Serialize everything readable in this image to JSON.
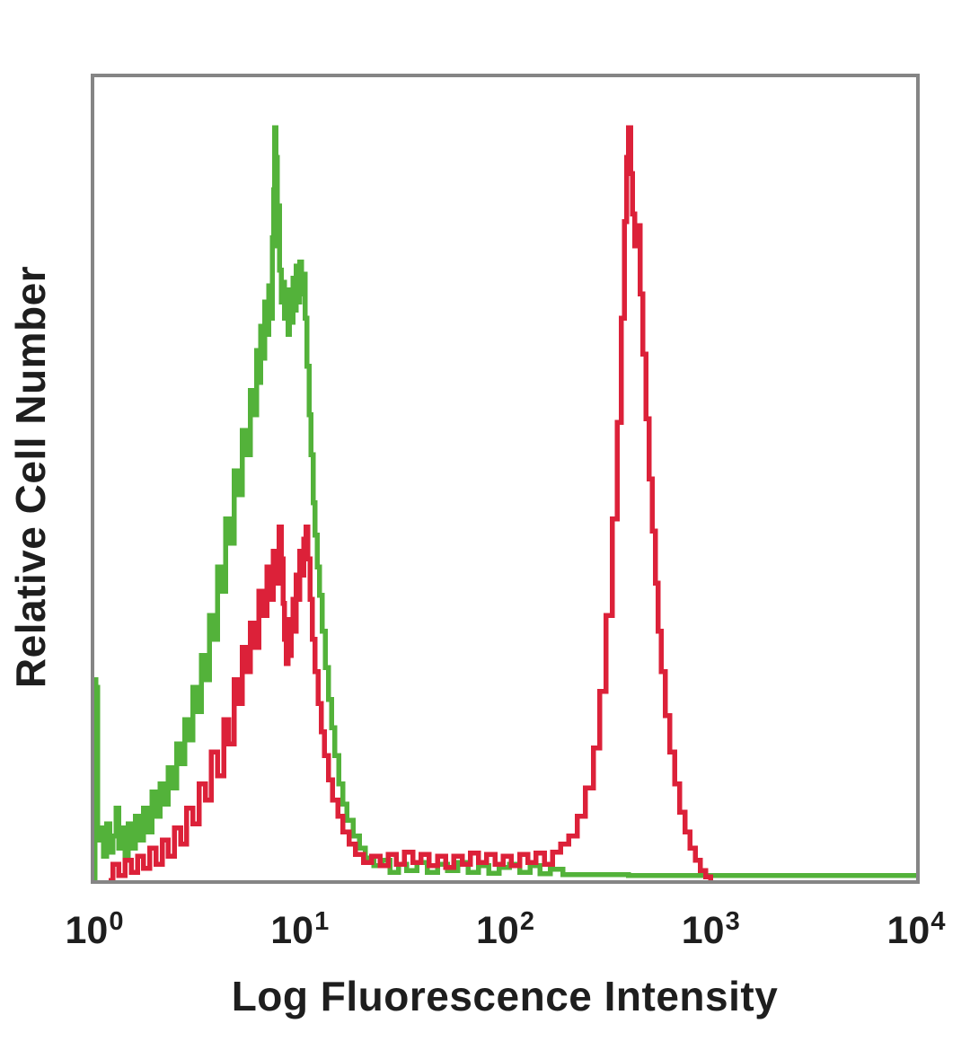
{
  "figure": {
    "background_color": "#ffffff",
    "frame_color": "#858585",
    "text_color": "#1e1e1e"
  },
  "chart_data": {
    "type": "line",
    "subtype": "flow-cytometry-overlay-histogram",
    "title": "",
    "xlabel": "Log Fluorescence Intensity",
    "ylabel": "Relative Cell Number",
    "x_scale": "log10",
    "x_range_decades": [
      0,
      4
    ],
    "x_ticks": [
      {
        "base": "10",
        "exp": "0",
        "decade": 0
      },
      {
        "base": "10",
        "exp": "1",
        "decade": 1
      },
      {
        "base": "10",
        "exp": "2",
        "decade": 2
      },
      {
        "base": "10",
        "exp": "3",
        "decade": 3
      },
      {
        "base": "10",
        "exp": "4",
        "decade": 4
      }
    ],
    "y_range": [
      0,
      1
    ],
    "y_ticks": [],
    "grid": false,
    "legend": "none",
    "series": [
      {
        "name": "green-curve",
        "color": "#53b23a",
        "peak_log_x": 0.88,
        "peak_height": 0.94,
        "points": [
          [
            0.0,
            0.0
          ],
          [
            0.004,
            0.25
          ],
          [
            0.008,
            0.17
          ],
          [
            0.012,
            0.24
          ],
          [
            0.016,
            0.05
          ],
          [
            0.03,
            0.065
          ],
          [
            0.045,
            0.03
          ],
          [
            0.06,
            0.07
          ],
          [
            0.075,
            0.035
          ],
          [
            0.09,
            0.055
          ],
          [
            0.105,
            0.09
          ],
          [
            0.12,
            0.04
          ],
          [
            0.135,
            0.065
          ],
          [
            0.15,
            0.03
          ],
          [
            0.165,
            0.07
          ],
          [
            0.18,
            0.04
          ],
          [
            0.2,
            0.08
          ],
          [
            0.22,
            0.05
          ],
          [
            0.24,
            0.09
          ],
          [
            0.26,
            0.06
          ],
          [
            0.28,
            0.11
          ],
          [
            0.3,
            0.08
          ],
          [
            0.32,
            0.12
          ],
          [
            0.34,
            0.095
          ],
          [
            0.36,
            0.14
          ],
          [
            0.38,
            0.115
          ],
          [
            0.4,
            0.17
          ],
          [
            0.42,
            0.145
          ],
          [
            0.44,
            0.2
          ],
          [
            0.46,
            0.175
          ],
          [
            0.48,
            0.24
          ],
          [
            0.5,
            0.21
          ],
          [
            0.52,
            0.28
          ],
          [
            0.54,
            0.25
          ],
          [
            0.56,
            0.33
          ],
          [
            0.58,
            0.3
          ],
          [
            0.6,
            0.39
          ],
          [
            0.62,
            0.36
          ],
          [
            0.64,
            0.45
          ],
          [
            0.66,
            0.42
          ],
          [
            0.68,
            0.51
          ],
          [
            0.7,
            0.48
          ],
          [
            0.72,
            0.56
          ],
          [
            0.74,
            0.53
          ],
          [
            0.76,
            0.61
          ],
          [
            0.775,
            0.58
          ],
          [
            0.79,
            0.66
          ],
          [
            0.8,
            0.62
          ],
          [
            0.81,
            0.69
          ],
          [
            0.82,
            0.65
          ],
          [
            0.83,
            0.72
          ],
          [
            0.84,
            0.68
          ],
          [
            0.85,
            0.74
          ],
          [
            0.858,
            0.7
          ],
          [
            0.866,
            0.8
          ],
          [
            0.872,
            0.86
          ],
          [
            0.878,
            0.937
          ],
          [
            0.884,
            0.9
          ],
          [
            0.89,
            0.79
          ],
          [
            0.896,
            0.84
          ],
          [
            0.902,
            0.76
          ],
          [
            0.91,
            0.72
          ],
          [
            0.918,
            0.745
          ],
          [
            0.926,
            0.7
          ],
          [
            0.934,
            0.73
          ],
          [
            0.942,
            0.68
          ],
          [
            0.95,
            0.735
          ],
          [
            0.958,
            0.695
          ],
          [
            0.966,
            0.75
          ],
          [
            0.974,
            0.71
          ],
          [
            0.982,
            0.765
          ],
          [
            0.99,
            0.72
          ],
          [
            1.0,
            0.77
          ],
          [
            1.008,
            0.73
          ],
          [
            1.016,
            0.755
          ],
          [
            1.025,
            0.7
          ],
          [
            1.035,
            0.64
          ],
          [
            1.045,
            0.58
          ],
          [
            1.055,
            0.53
          ],
          [
            1.065,
            0.47
          ],
          [
            1.075,
            0.43
          ],
          [
            1.085,
            0.39
          ],
          [
            1.095,
            0.355
          ],
          [
            1.11,
            0.31
          ],
          [
            1.125,
            0.265
          ],
          [
            1.14,
            0.225
          ],
          [
            1.155,
            0.19
          ],
          [
            1.17,
            0.155
          ],
          [
            1.19,
            0.12
          ],
          [
            1.21,
            0.095
          ],
          [
            1.23,
            0.075
          ],
          [
            1.26,
            0.055
          ],
          [
            1.29,
            0.04
          ],
          [
            1.32,
            0.028
          ],
          [
            1.36,
            0.018
          ],
          [
            1.4,
            0.025
          ],
          [
            1.44,
            0.01
          ],
          [
            1.48,
            0.02
          ],
          [
            1.52,
            0.012
          ],
          [
            1.57,
            0.022
          ],
          [
            1.62,
            0.01
          ],
          [
            1.67,
            0.02
          ],
          [
            1.72,
            0.012
          ],
          [
            1.77,
            0.022
          ],
          [
            1.82,
            0.01
          ],
          [
            1.87,
            0.018
          ],
          [
            1.92,
            0.009
          ],
          [
            1.97,
            0.016
          ],
          [
            2.02,
            0.02
          ],
          [
            2.07,
            0.01
          ],
          [
            2.12,
            0.018
          ],
          [
            2.17,
            0.008
          ],
          [
            2.22,
            0.014
          ],
          [
            2.28,
            0.007
          ],
          [
            2.4,
            0.007
          ],
          [
            2.6,
            0.006
          ],
          [
            3.0,
            0.006
          ],
          [
            3.5,
            0.006
          ],
          [
            4.0,
            0.006
          ]
        ]
      },
      {
        "name": "red-curve",
        "color": "#dc2139",
        "peak_log_x": 2.6,
        "peak_height": 0.94,
        "secondary_peak_log_x": 0.97,
        "secondary_peak_height": 0.44,
        "points": [
          [
            0.07,
            0.0
          ],
          [
            0.09,
            0.02
          ],
          [
            0.12,
            0.006
          ],
          [
            0.15,
            0.025
          ],
          [
            0.18,
            0.01
          ],
          [
            0.21,
            0.03
          ],
          [
            0.24,
            0.015
          ],
          [
            0.27,
            0.04
          ],
          [
            0.3,
            0.02
          ],
          [
            0.33,
            0.05
          ],
          [
            0.36,
            0.03
          ],
          [
            0.39,
            0.065
          ],
          [
            0.42,
            0.045
          ],
          [
            0.45,
            0.09
          ],
          [
            0.48,
            0.07
          ],
          [
            0.51,
            0.12
          ],
          [
            0.54,
            0.1
          ],
          [
            0.57,
            0.16
          ],
          [
            0.6,
            0.13
          ],
          [
            0.63,
            0.2
          ],
          [
            0.655,
            0.17
          ],
          [
            0.68,
            0.25
          ],
          [
            0.7,
            0.22
          ],
          [
            0.72,
            0.29
          ],
          [
            0.74,
            0.26
          ],
          [
            0.76,
            0.32
          ],
          [
            0.78,
            0.29
          ],
          [
            0.8,
            0.36
          ],
          [
            0.82,
            0.33
          ],
          [
            0.84,
            0.39
          ],
          [
            0.855,
            0.35
          ],
          [
            0.87,
            0.41
          ],
          [
            0.885,
            0.37
          ],
          [
            0.9,
            0.44
          ],
          [
            0.91,
            0.4
          ],
          [
            0.918,
            0.345
          ],
          [
            0.926,
            0.3
          ],
          [
            0.934,
            0.27
          ],
          [
            0.942,
            0.325
          ],
          [
            0.95,
            0.28
          ],
          [
            0.958,
            0.315
          ],
          [
            0.966,
            0.35
          ],
          [
            0.974,
            0.31
          ],
          [
            0.982,
            0.38
          ],
          [
            0.99,
            0.35
          ],
          [
            1.0,
            0.41
          ],
          [
            1.01,
            0.38
          ],
          [
            1.02,
            0.425
          ],
          [
            1.03,
            0.44
          ],
          [
            1.04,
            0.4
          ],
          [
            1.05,
            0.35
          ],
          [
            1.06,
            0.3
          ],
          [
            1.075,
            0.26
          ],
          [
            1.09,
            0.22
          ],
          [
            1.105,
            0.185
          ],
          [
            1.12,
            0.155
          ],
          [
            1.14,
            0.125
          ],
          [
            1.16,
            0.1
          ],
          [
            1.185,
            0.08
          ],
          [
            1.21,
            0.06
          ],
          [
            1.24,
            0.045
          ],
          [
            1.27,
            0.032
          ],
          [
            1.31,
            0.022
          ],
          [
            1.35,
            0.03
          ],
          [
            1.39,
            0.018
          ],
          [
            1.43,
            0.032
          ],
          [
            1.47,
            0.02
          ],
          [
            1.51,
            0.035
          ],
          [
            1.55,
            0.022
          ],
          [
            1.59,
            0.032
          ],
          [
            1.63,
            0.018
          ],
          [
            1.67,
            0.03
          ],
          [
            1.71,
            0.016
          ],
          [
            1.75,
            0.03
          ],
          [
            1.79,
            0.02
          ],
          [
            1.83,
            0.034
          ],
          [
            1.87,
            0.022
          ],
          [
            1.91,
            0.032
          ],
          [
            1.95,
            0.02
          ],
          [
            1.99,
            0.03
          ],
          [
            2.03,
            0.018
          ],
          [
            2.07,
            0.032
          ],
          [
            2.11,
            0.022
          ],
          [
            2.15,
            0.034
          ],
          [
            2.19,
            0.02
          ],
          [
            2.23,
            0.035
          ],
          [
            2.27,
            0.045
          ],
          [
            2.31,
            0.055
          ],
          [
            2.35,
            0.08
          ],
          [
            2.39,
            0.115
          ],
          [
            2.43,
            0.165
          ],
          [
            2.46,
            0.235
          ],
          [
            2.49,
            0.33
          ],
          [
            2.52,
            0.45
          ],
          [
            2.545,
            0.57
          ],
          [
            2.565,
            0.7
          ],
          [
            2.58,
            0.82
          ],
          [
            2.592,
            0.9
          ],
          [
            2.6,
            0.937
          ],
          [
            2.61,
            0.88
          ],
          [
            2.62,
            0.83
          ],
          [
            2.63,
            0.79
          ],
          [
            2.643,
            0.815
          ],
          [
            2.656,
            0.73
          ],
          [
            2.67,
            0.655
          ],
          [
            2.685,
            0.575
          ],
          [
            2.7,
            0.5
          ],
          [
            2.715,
            0.435
          ],
          [
            2.73,
            0.37
          ],
          [
            2.745,
            0.31
          ],
          [
            2.76,
            0.26
          ],
          [
            2.78,
            0.205
          ],
          [
            2.8,
            0.16
          ],
          [
            2.825,
            0.12
          ],
          [
            2.85,
            0.085
          ],
          [
            2.875,
            0.06
          ],
          [
            2.9,
            0.04
          ],
          [
            2.925,
            0.025
          ],
          [
            2.95,
            0.012
          ],
          [
            2.975,
            0.004
          ],
          [
            3.0,
            0.0
          ]
        ]
      }
    ]
  }
}
